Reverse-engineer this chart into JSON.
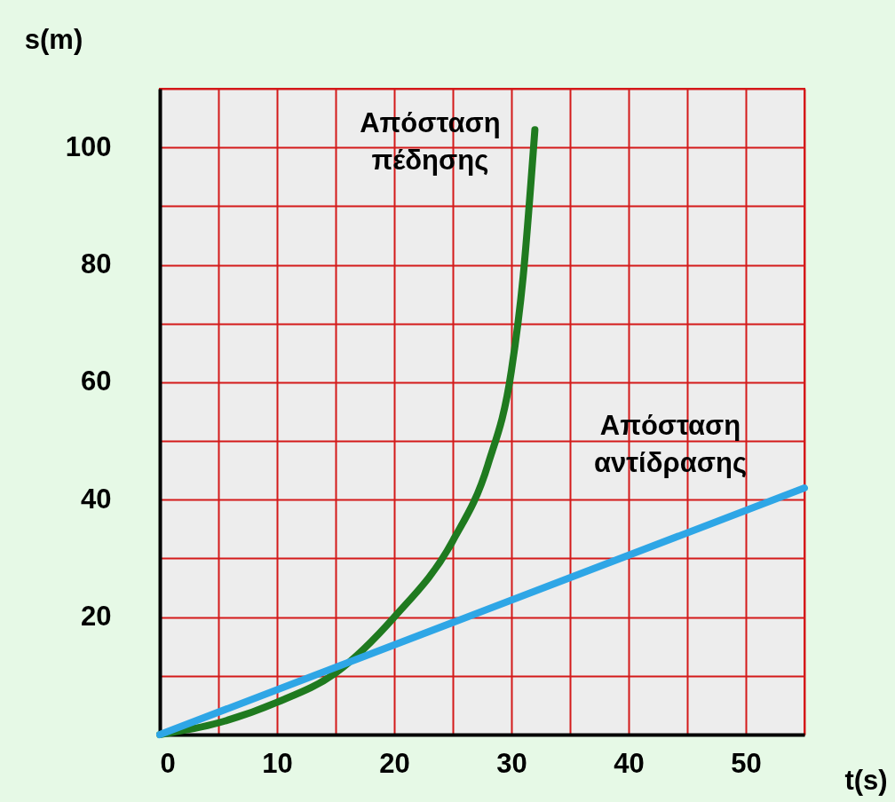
{
  "chart_data": {
    "type": "line",
    "xlabel": "t(s)",
    "ylabel": "s(m)",
    "xlim": [
      0,
      55
    ],
    "ylim": [
      0,
      110
    ],
    "xticks": [
      {
        "value": 0,
        "label": "0"
      },
      {
        "value": 5,
        "label": null
      },
      10,
      {
        "value": 15,
        "label": null
      },
      20,
      {
        "value": 25,
        "label": null
      },
      30,
      {
        "value": 35,
        "label": null
      },
      40,
      {
        "value": 45,
        "label": null
      },
      50,
      {
        "value": 55,
        "label": null
      }
    ],
    "yticks": [
      {
        "value": 0,
        "label": null
      },
      {
        "value": 10,
        "label": null
      },
      20,
      {
        "value": 30,
        "label": null
      },
      40,
      {
        "value": 50,
        "label": null
      },
      60,
      {
        "value": 70,
        "label": null
      },
      80,
      {
        "value": 90,
        "label": null
      },
      100,
      {
        "value": 110,
        "label": null
      }
    ],
    "grid": true,
    "legend": false,
    "marker": "none",
    "line_style": "solid",
    "series": [
      {
        "name": "Απόσταση πέδησης",
        "color": "#1f7a1f",
        "x": [
          0,
          5,
          10,
          15,
          20,
          25,
          28,
          30,
          31,
          32
        ],
        "values": [
          0,
          2,
          5.5,
          10.5,
          20,
          33,
          46,
          62,
          78,
          103
        ]
      },
      {
        "name": "Απόσταση αντίδρασης",
        "color": "#2ea6e6",
        "x": [
          0,
          55
        ],
        "values": [
          0,
          42
        ]
      }
    ]
  }
}
